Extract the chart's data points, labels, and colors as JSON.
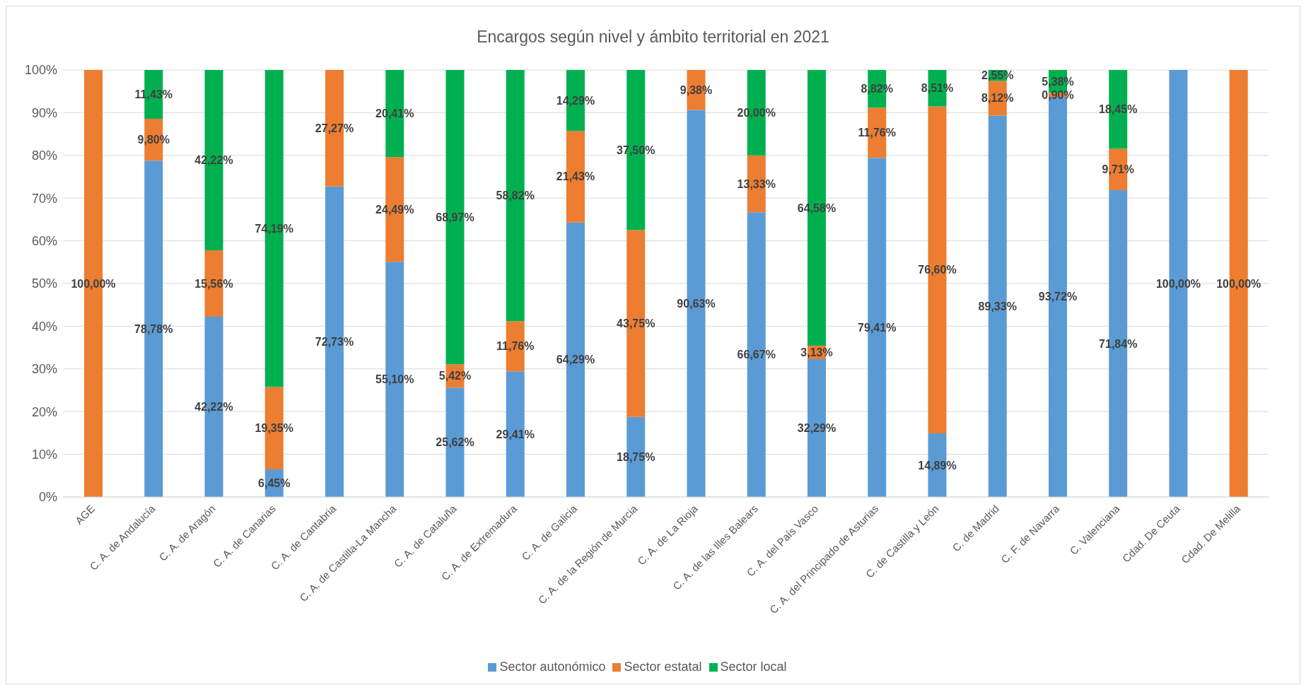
{
  "chart_data": {
    "type": "bar",
    "stacked": true,
    "title": "Encargos según nivel y ámbito territorial en 2021",
    "categories": [
      "AGE",
      "C. A. de Andalucía",
      "C. A. de Aragón",
      "C. A. de Canarias",
      "C. A. de Cantabria",
      "C. A. de Castilla-La Mancha",
      "C. A. de Cataluña",
      "C. A. de Extremadura",
      "C. A. de Galicia",
      "C. A. de la Región de Murcia",
      "C. A. de La Rioja",
      "C. A. de las Illes Balears",
      "C. A. del País Vasco",
      "C. A. del Principado de Asturias",
      "C. de Castilla y León",
      "C. de Madrid",
      "C. F. de Navarra",
      "C. Valenciana",
      "Cdad. De Ceuta",
      "Cdad. De Melilla"
    ],
    "series": [
      {
        "name": "Sector autonómico",
        "color": "#5b9bd5",
        "values": [
          0,
          78.78,
          42.22,
          6.45,
          72.73,
          55.1,
          25.62,
          29.41,
          64.29,
          18.75,
          90.63,
          66.67,
          32.29,
          79.41,
          14.89,
          89.33,
          93.72,
          71.84,
          100,
          0
        ],
        "value_labels": [
          null,
          "78,78%",
          "42,22%",
          "6,45%",
          "72,73%",
          "55,10%",
          "25,62%",
          "29,41%",
          "64,29%",
          "18,75%",
          "90,63%",
          "66,67%",
          "32,29%",
          "79,41%",
          "14,89%",
          "89,33%",
          "93,72%",
          "71,84%",
          "100,00%",
          null
        ]
      },
      {
        "name": "Sector estatal",
        "color": "#ed7d31",
        "values": [
          100,
          9.8,
          15.56,
          19.35,
          27.27,
          24.49,
          5.42,
          11.76,
          21.43,
          43.75,
          9.38,
          13.33,
          3.13,
          11.76,
          76.6,
          8.12,
          0.9,
          9.71,
          0,
          100
        ],
        "value_labels": [
          "100,00%",
          "9,80%",
          "15,56%",
          "19,35%",
          "27,27%",
          "24,49%",
          "5,42%",
          "11,76%",
          "21,43%",
          "43,75%",
          "9,38%",
          "13,33%",
          "3,13%",
          "11,76%",
          "76,60%",
          "8,12%",
          "0,90%",
          "9,71%",
          null,
          "100,00%"
        ]
      },
      {
        "name": "Sector local",
        "color": "#00b050",
        "values": [
          0,
          11.43,
          42.22,
          74.19,
          0,
          20.41,
          68.97,
          58.82,
          14.29,
          37.5,
          0,
          20.0,
          64.58,
          8.82,
          8.51,
          2.55,
          5.38,
          18.45,
          0,
          0
        ],
        "value_labels": [
          null,
          "11,43%",
          "42,22%",
          "74,19%",
          null,
          "20,41%",
          "68,97%",
          "58,82%",
          "14,29%",
          "37,50%",
          null,
          "20,00%",
          "64,58%",
          "8,82%",
          "8,51%",
          "2,55%",
          "5,38%",
          "18,45%",
          null,
          null
        ]
      }
    ],
    "ylim": [
      0,
      100
    ],
    "yticks": [
      {
        "value": 0,
        "label": "0%"
      },
      {
        "value": 10,
        "label": "10%"
      },
      {
        "value": 20,
        "label": "20%"
      },
      {
        "value": 30,
        "label": "30%"
      },
      {
        "value": 40,
        "label": "40%"
      },
      {
        "value": 50,
        "label": "50%"
      },
      {
        "value": 60,
        "label": "60%"
      },
      {
        "value": 70,
        "label": "70%"
      },
      {
        "value": 80,
        "label": "80%"
      },
      {
        "value": 90,
        "label": "90%"
      },
      {
        "value": 100,
        "label": "100%"
      }
    ],
    "grid": "y",
    "legend": "bottom"
  }
}
